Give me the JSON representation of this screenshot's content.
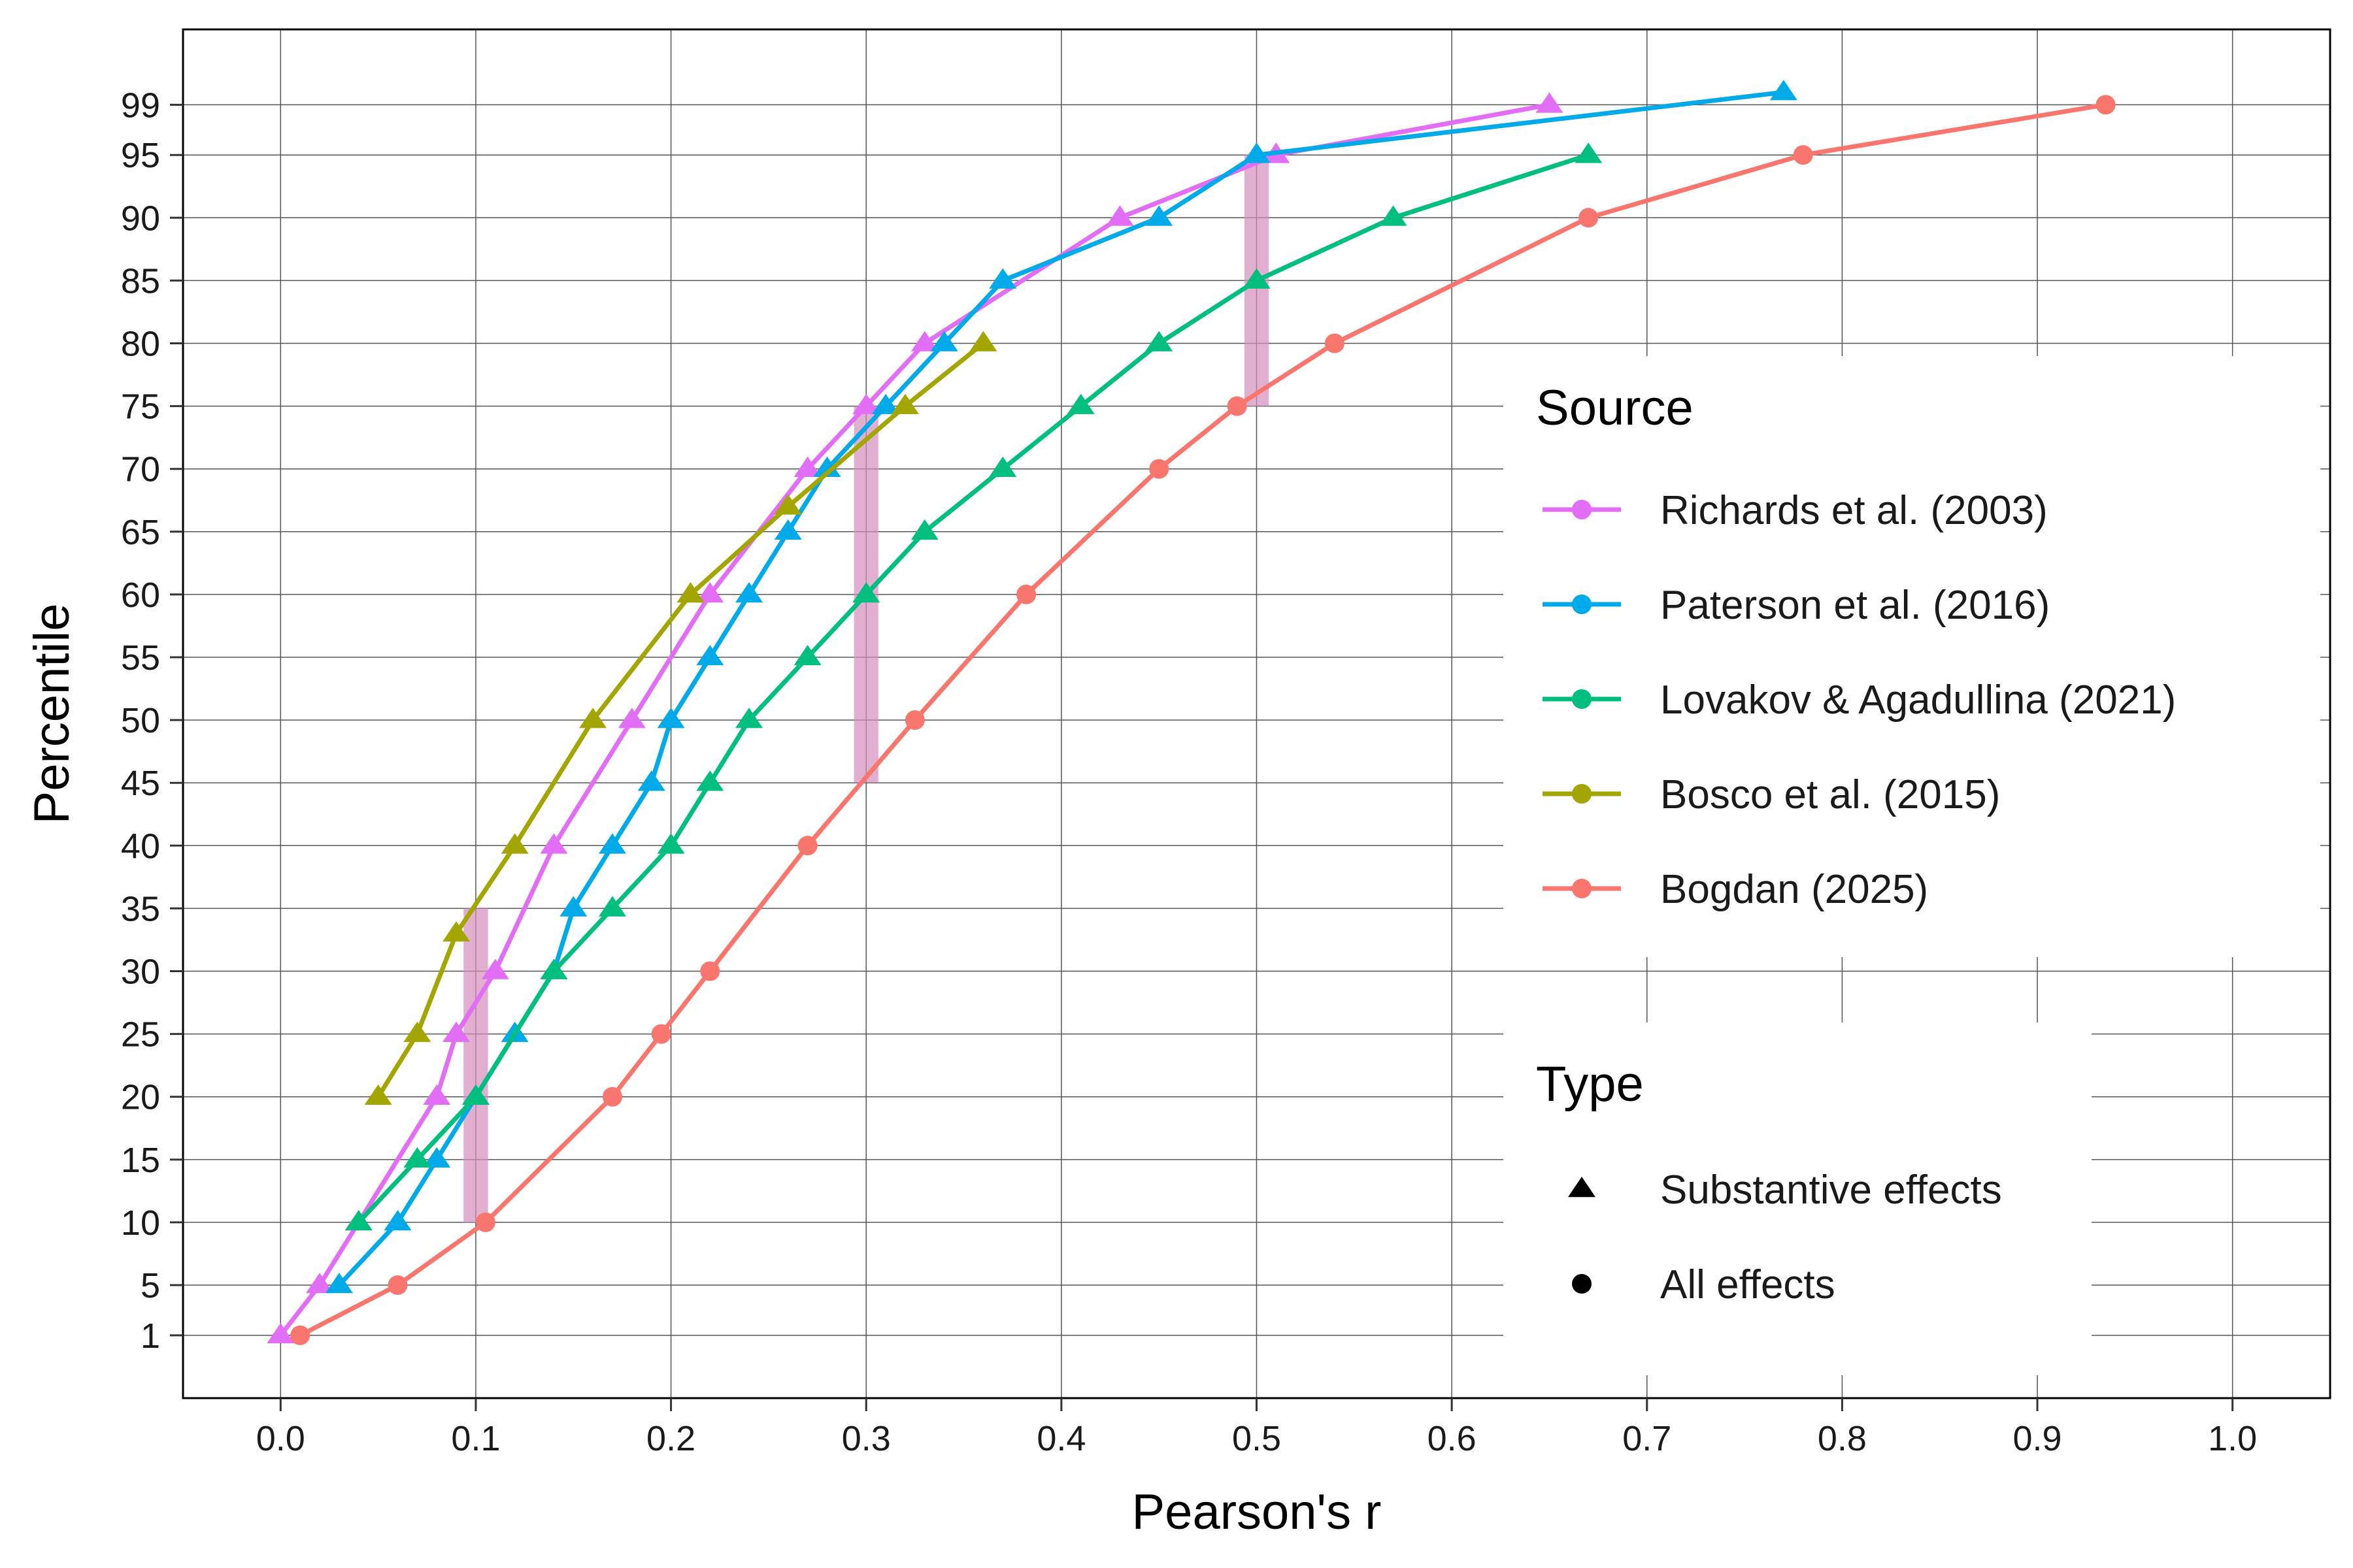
{
  "chart_data": {
    "type": "line",
    "xlabel": "Pearson's r",
    "ylabel": "Percentile",
    "xlim": [
      -0.05,
      1.05
    ],
    "ylim": [
      -4,
      105
    ],
    "x_ticks": [
      0.0,
      0.1,
      0.2,
      0.3,
      0.4,
      0.5,
      0.6,
      0.7,
      0.8,
      0.9,
      1.0
    ],
    "x_tick_labels": [
      "0.0",
      "0.1",
      "0.2",
      "0.3",
      "0.4",
      "0.5",
      "0.6",
      "0.7",
      "0.8",
      "0.9",
      "1.0"
    ],
    "y_ticks": [
      1,
      5,
      10,
      15,
      20,
      25,
      30,
      35,
      40,
      45,
      50,
      55,
      60,
      65,
      70,
      75,
      80,
      85,
      90,
      95,
      99
    ],
    "y_tick_labels": [
      "1",
      "5",
      "10",
      "15",
      "20",
      "25",
      "30",
      "35",
      "40",
      "45",
      "50",
      "55",
      "60",
      "65",
      "70",
      "75",
      "80",
      "85",
      "90",
      "95",
      "99"
    ],
    "grid": true,
    "highlight_bands": [
      {
        "x": 0.1,
        "y_range": [
          10,
          35
        ]
      },
      {
        "x": 0.3,
        "y_range": [
          45,
          75
        ]
      },
      {
        "x": 0.5,
        "y_range": [
          75,
          95
        ]
      }
    ],
    "highlight_color": "#d48fbd",
    "series": [
      {
        "name": "Richards et al. (2003)",
        "color": "#E36EF6",
        "marker": "triangle",
        "points": [
          [
            0.0,
            1
          ],
          [
            0.02,
            5
          ],
          [
            0.04,
            10
          ],
          [
            0.08,
            20
          ],
          [
            0.09,
            25
          ],
          [
            0.11,
            30
          ],
          [
            0.14,
            40
          ],
          [
            0.18,
            50
          ],
          [
            0.22,
            60
          ],
          [
            0.27,
            70
          ],
          [
            0.3,
            75
          ],
          [
            0.33,
            80
          ],
          [
            0.43,
            90
          ],
          [
            0.51,
            95
          ],
          [
            0.65,
            99
          ]
        ]
      },
      {
        "name": "Paterson et al. (2016)",
        "color": "#00A9E8",
        "marker": "triangle",
        "points": [
          [
            0.03,
            5
          ],
          [
            0.06,
            10
          ],
          [
            0.08,
            15
          ],
          [
            0.1,
            20
          ],
          [
            0.12,
            25
          ],
          [
            0.14,
            30
          ],
          [
            0.15,
            35
          ],
          [
            0.17,
            40
          ],
          [
            0.19,
            45
          ],
          [
            0.2,
            50
          ],
          [
            0.22,
            55
          ],
          [
            0.24,
            60
          ],
          [
            0.26,
            65
          ],
          [
            0.28,
            70
          ],
          [
            0.31,
            75
          ],
          [
            0.34,
            80
          ],
          [
            0.37,
            85
          ],
          [
            0.45,
            90
          ],
          [
            0.5,
            95
          ],
          [
            0.77,
            100
          ]
        ]
      },
      {
        "name": "Lovakov & Agadullina (2021)",
        "color": "#00BE7D",
        "marker": "triangle",
        "points": [
          [
            0.04,
            10
          ],
          [
            0.07,
            15
          ],
          [
            0.1,
            20
          ],
          [
            0.14,
            30
          ],
          [
            0.17,
            35
          ],
          [
            0.2,
            40
          ],
          [
            0.22,
            45
          ],
          [
            0.24,
            50
          ],
          [
            0.27,
            55
          ],
          [
            0.3,
            60
          ],
          [
            0.33,
            65
          ],
          [
            0.37,
            70
          ],
          [
            0.41,
            75
          ],
          [
            0.45,
            80
          ],
          [
            0.5,
            85
          ],
          [
            0.57,
            90
          ],
          [
            0.67,
            95
          ]
        ]
      },
      {
        "name": "Bosco et al. (2015)",
        "color": "#A3A500",
        "marker": "triangle",
        "points": [
          [
            0.05,
            20
          ],
          [
            0.07,
            25
          ],
          [
            0.09,
            33
          ],
          [
            0.12,
            40
          ],
          [
            0.16,
            50
          ],
          [
            0.21,
            60
          ],
          [
            0.26,
            67
          ],
          [
            0.32,
            75
          ],
          [
            0.36,
            80
          ]
        ]
      },
      {
        "name": "Bogdan (2025)",
        "color": "#F8766D",
        "marker": "circle",
        "points": [
          [
            0.01,
            1
          ],
          [
            0.06,
            5
          ],
          [
            0.105,
            10
          ],
          [
            0.17,
            20
          ],
          [
            0.195,
            25
          ],
          [
            0.22,
            30
          ],
          [
            0.27,
            40
          ],
          [
            0.325,
            50
          ],
          [
            0.382,
            60
          ],
          [
            0.45,
            70
          ],
          [
            0.49,
            75
          ],
          [
            0.54,
            80
          ],
          [
            0.67,
            90
          ],
          [
            0.78,
            95
          ],
          [
            0.935,
            99
          ]
        ]
      }
    ],
    "legend": {
      "position": "right-inside",
      "source_title": "Source",
      "type_title": "Type",
      "type_entries": [
        {
          "label": "Substantive effects",
          "marker": "triangle"
        },
        {
          "label": "All effects",
          "marker": "circle"
        }
      ]
    }
  }
}
